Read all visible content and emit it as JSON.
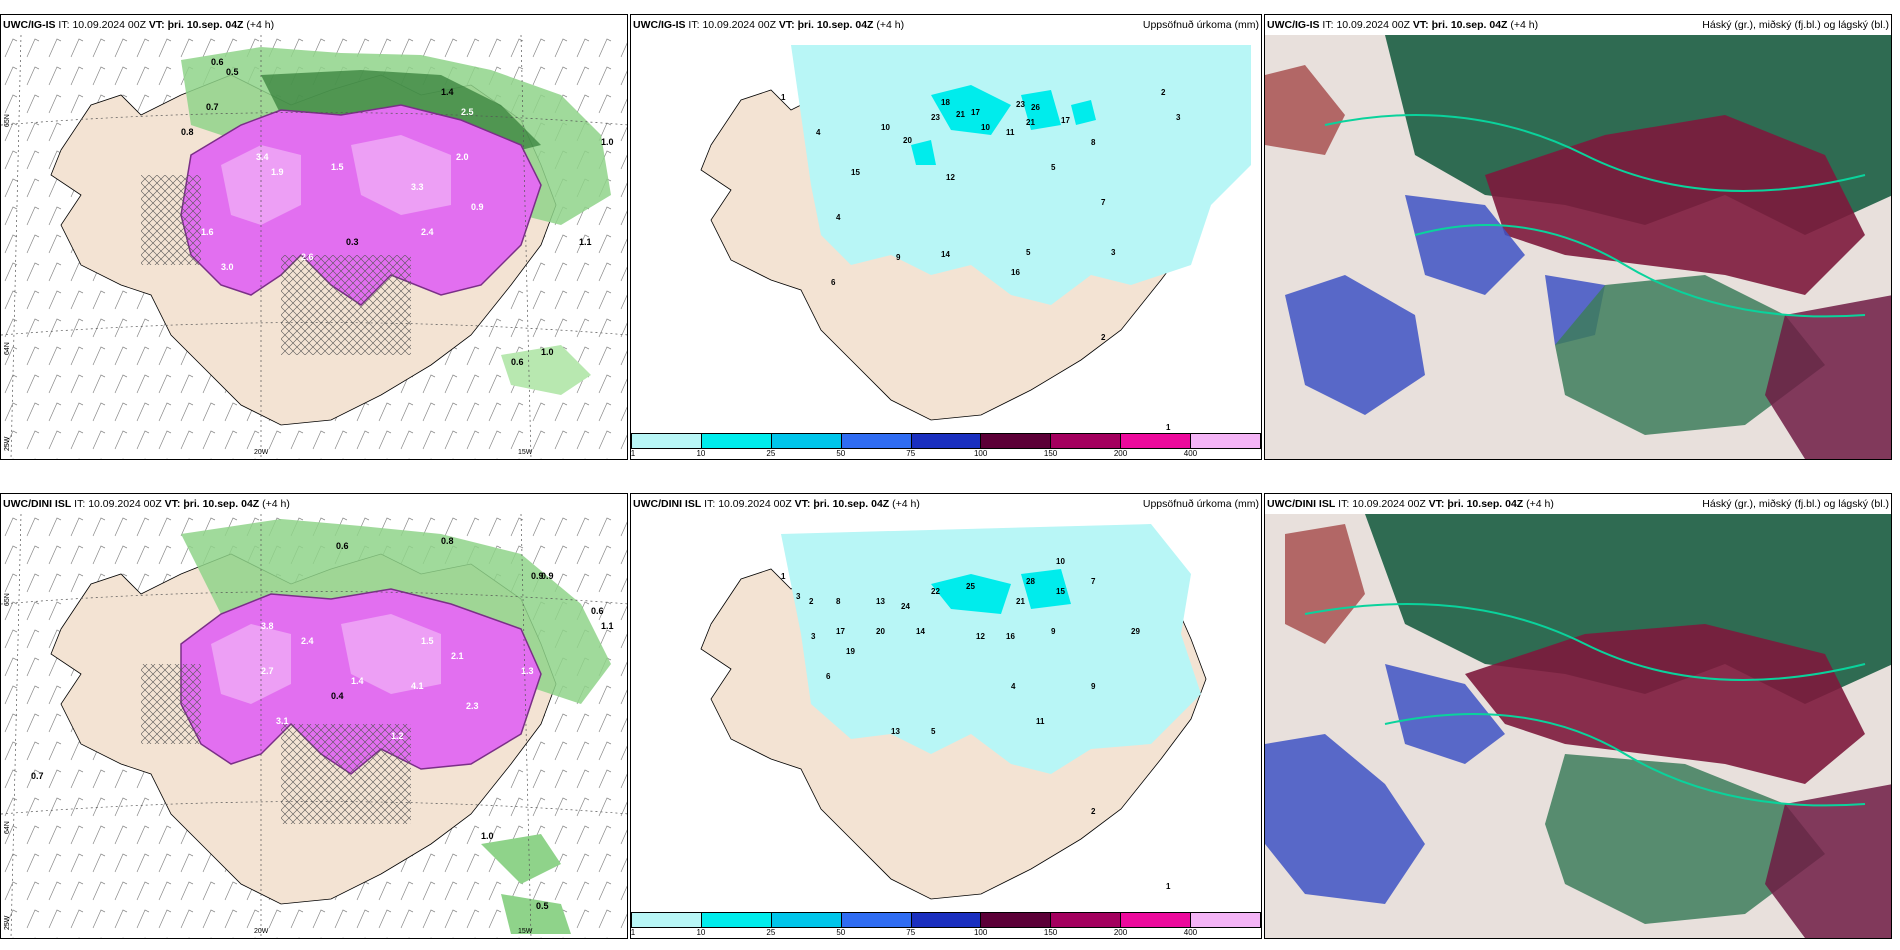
{
  "panels": [
    {
      "model": "UWC/IG-IS",
      "it_label": "IT:",
      "it": "10.09.2024 00Z",
      "vt_label": "VT:",
      "vt": "þri. 10.sep. 04Z",
      "lead": "(+4 h)",
      "title": "",
      "lat_labels": [
        "65N",
        "64N"
      ],
      "lon_labels": [
        "25W",
        "20W",
        "15W"
      ],
      "values": [
        "0.6",
        "0.5",
        "0.7",
        "0.8",
        "1.4",
        "2.5",
        "3.4",
        "2.0",
        "1.5",
        "1.9",
        "3.0",
        "2.6",
        "1.6",
        "0.3",
        "3.3",
        "2.4",
        "1.1",
        "0.9",
        "1.0",
        "0.6",
        "1.0"
      ]
    },
    {
      "model": "UWC/IG-IS",
      "it_label": "IT:",
      "it": "10.09.2024 00Z",
      "vt_label": "VT:",
      "vt": "þri. 10.sep. 04Z",
      "lead": "(+4 h)",
      "title": "Uppsöfnuð úrkoma (mm)",
      "values": [
        "1",
        "4",
        "10",
        "20",
        "15",
        "18",
        "23",
        "21",
        "17",
        "23",
        "26",
        "21",
        "17",
        "10",
        "11",
        "8",
        "2",
        "3",
        "5",
        "4",
        "9",
        "12",
        "14",
        "16",
        "7",
        "3",
        "6",
        "5",
        "2",
        "1"
      ],
      "colorbar": {
        "labels": [
          "1",
          "10",
          "25",
          "50",
          "75",
          "100",
          "150",
          "200",
          "400"
        ],
        "colors": [
          "#b8f6f6",
          "#00ecec",
          "#00c5ea",
          "#2f6cf2",
          "#1a2fbf",
          "#5c0037",
          "#a3005e",
          "#ec0a9c",
          "#f4b4f6"
        ]
      }
    },
    {
      "model": "UWC/IG-IS",
      "it_label": "IT:",
      "it": "10.09.2024 00Z",
      "vt_label": "VT:",
      "vt": "þri. 10.sep. 04Z",
      "lead": "(+4 h)",
      "title": "Háský (gr.), miðský (fj.bl.) og lágský (bl.)"
    },
    {
      "model": "UWC/DINI ISL",
      "it_label": "IT:",
      "it": "10.09.2024 00Z",
      "vt_label": "VT:",
      "vt": "þri. 10.sep. 04Z",
      "lead": "(+4 h)",
      "title": "",
      "lat_labels": [
        "65N",
        "64N"
      ],
      "lon_labels": [
        "25W",
        "20W",
        "15W"
      ],
      "values": [
        "0.6",
        "0.8",
        "0.9",
        "1.1",
        "1.0",
        "2.3",
        "3.8",
        "2.4",
        "1.5",
        "3.1",
        "2.1",
        "0.7",
        "0.5",
        "0.9",
        "1.3",
        "2.7",
        "1.4",
        "4.1",
        "0.4",
        "1.2",
        "0.6"
      ]
    },
    {
      "model": "UWC/DINI ISL",
      "it_label": "IT:",
      "it": "10.09.2024 00Z",
      "vt_label": "VT:",
      "vt": "þri. 10.sep. 04Z",
      "lead": "(+4 h)",
      "title": "Uppsöfnuð úrkoma (mm)",
      "values": [
        "1",
        "3",
        "2",
        "8",
        "13",
        "24",
        "22",
        "25",
        "28",
        "21",
        "15",
        "10",
        "9",
        "7",
        "6",
        "20",
        "17",
        "14",
        "12",
        "16",
        "11",
        "19",
        "4",
        "5",
        "1",
        "2",
        "3",
        "9",
        "13",
        "29"
      ],
      "colorbar": {
        "labels": [
          "1",
          "10",
          "25",
          "50",
          "75",
          "100",
          "150",
          "200",
          "400"
        ],
        "colors": [
          "#b8f6f6",
          "#00ecec",
          "#00c5ea",
          "#2f6cf2",
          "#1a2fbf",
          "#5c0037",
          "#a3005e",
          "#ec0a9c",
          "#f4b4f6"
        ]
      }
    },
    {
      "model": "UWC/DINI ISL",
      "it_label": "IT:",
      "it": "10.09.2024 00Z",
      "vt_label": "VT:",
      "vt": "þri. 10.sep. 04Z",
      "lead": "(+4 h)",
      "title": "Háský (gr.), miðský (fj.bl.) og lágský (bl.)"
    }
  ],
  "colors": {
    "land": "#f3e3d3",
    "precip_light": "#b8f6f6",
    "precip_mid": "#00ecec",
    "ice_pink": "#e26ff0",
    "ice_dark": "#7a2f87",
    "green_light": "#b8e8b0",
    "green_dark": "#2f7a35",
    "cloud_high": "#2f6b52",
    "cloud_mid": "#3e52c4",
    "cloud_low": "#7d1a3c"
  }
}
